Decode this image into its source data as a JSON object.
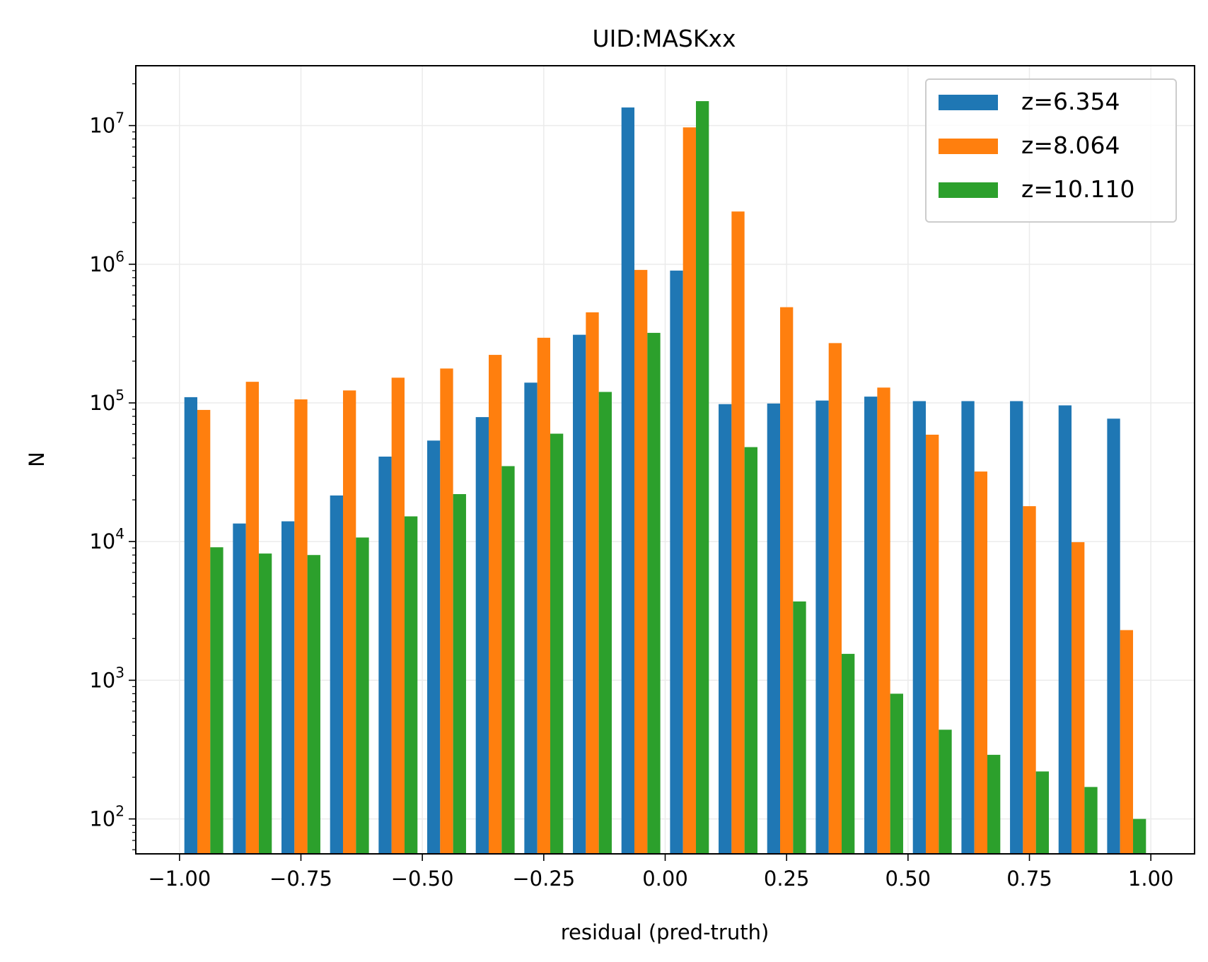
{
  "chart_data": {
    "type": "bar",
    "title": "UID:MASKxx",
    "xlabel": "residual (pred-truth)",
    "ylabel": "N",
    "yscale": "log",
    "xlim": [
      -1.09,
      1.09
    ],
    "ylim": [
      56,
      27000000
    ],
    "grid": true,
    "legend_position": "top-right",
    "bin_edges": [
      -1.0,
      -0.9,
      -0.8,
      -0.7,
      -0.6,
      -0.5,
      -0.4,
      -0.3,
      -0.2,
      -0.1,
      0.0,
      0.1,
      0.2,
      0.3,
      0.4,
      0.5,
      0.6,
      0.7,
      0.8,
      0.9,
      1.0
    ],
    "x_ticks": [
      {
        "value": -1.0,
        "label": "−1.00"
      },
      {
        "value": -0.75,
        "label": "−0.75"
      },
      {
        "value": -0.5,
        "label": "−0.50"
      },
      {
        "value": -0.25,
        "label": "−0.25"
      },
      {
        "value": 0.0,
        "label": "0.00"
      },
      {
        "value": 0.25,
        "label": "0.25"
      },
      {
        "value": 0.5,
        "label": "0.50"
      },
      {
        "value": 0.75,
        "label": "0.75"
      },
      {
        "value": 1.0,
        "label": "1.00"
      }
    ],
    "y_ticks": [
      {
        "value": 100,
        "base": "10",
        "exp": "2"
      },
      {
        "value": 1000,
        "base": "10",
        "exp": "3"
      },
      {
        "value": 10000,
        "base": "10",
        "exp": "4"
      },
      {
        "value": 100000,
        "base": "10",
        "exp": "5"
      },
      {
        "value": 1000000,
        "base": "10",
        "exp": "6"
      },
      {
        "value": 10000000,
        "base": "10",
        "exp": "7"
      }
    ],
    "series": [
      {
        "name": "z=6.354",
        "color": "#1f77b4",
        "values": [
          110000,
          13500,
          14000,
          21500,
          41000,
          53500,
          79000,
          140000,
          310000,
          13500000,
          900000,
          98000,
          99000,
          104000,
          111000,
          103000,
          103000,
          103000,
          96000,
          77000
        ]
      },
      {
        "name": "z=8.064",
        "color": "#ff7f0e",
        "values": [
          89000,
          142000,
          106000,
          123000,
          152000,
          177000,
          222000,
          295000,
          450000,
          910000,
          9700000,
          2400000,
          490000,
          270000,
          129000,
          59000,
          32000,
          18000,
          9900,
          2300
        ]
      },
      {
        "name": "z=10.110",
        "color": "#2ca02c",
        "values": [
          9100,
          8200,
          8000,
          10700,
          15200,
          22000,
          35000,
          60000,
          120000,
          320000,
          15000000,
          48000,
          3700,
          1550,
          800,
          440,
          290,
          220,
          170,
          100
        ]
      }
    ]
  }
}
